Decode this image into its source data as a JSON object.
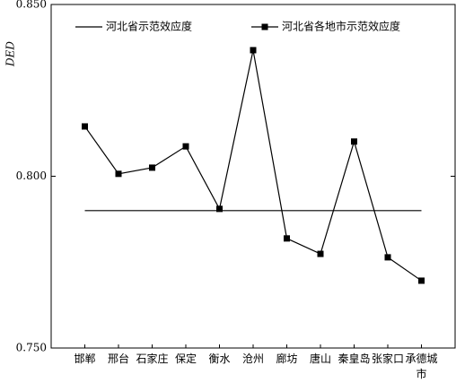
{
  "chart_data": {
    "type": "line",
    "y_label": "DED",
    "categories": [
      "邯郸",
      "邢台",
      "石家庄",
      "保定",
      "衡水",
      "沧州",
      "廊坊",
      "唐山",
      "秦皇岛",
      "张家口",
      "承德城市"
    ],
    "series": [
      {
        "name": "河北省示范效应度",
        "color": "#000000",
        "marker": "none",
        "values": [
          0.79,
          0.79,
          0.79,
          0.79,
          0.79,
          0.79,
          0.79,
          0.79,
          0.79,
          0.79,
          0.79
        ]
      },
      {
        "name": "河北省各地市示范效应度",
        "color": "#000000",
        "marker": "square",
        "values": [
          0.8145,
          0.8007,
          0.8025,
          0.8087,
          0.7905,
          0.8367,
          0.7819,
          0.7774,
          0.8101,
          0.7764,
          0.7696
        ]
      }
    ],
    "ylim": [
      0.75,
      0.85
    ],
    "yticks": [
      {
        "value": 0.75,
        "label": "0.750"
      },
      {
        "value": 0.8,
        "label": "0.800"
      },
      {
        "value": 0.85,
        "label": "0.850"
      }
    ],
    "legend": "top-left"
  }
}
